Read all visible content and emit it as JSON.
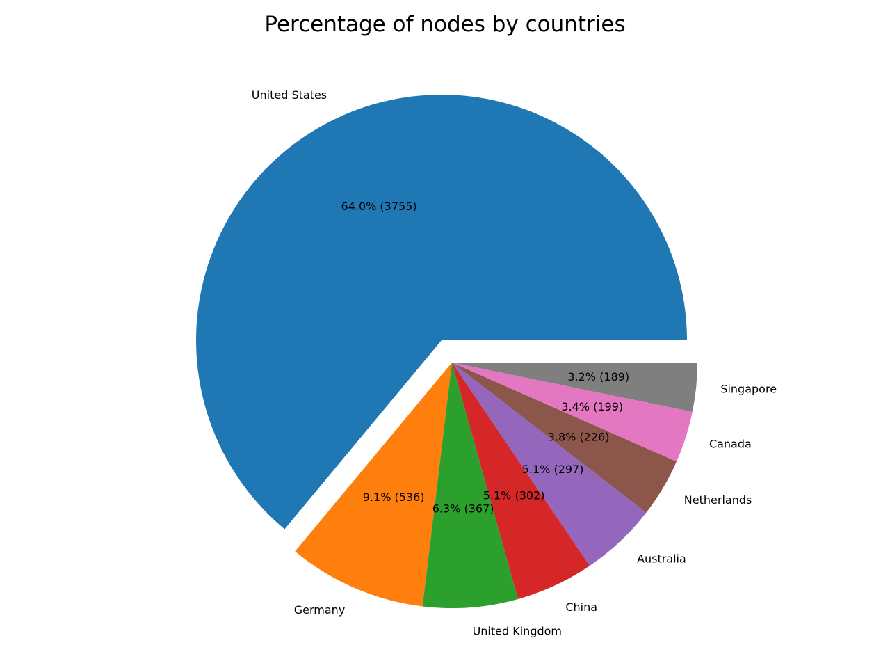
{
  "chart_data": {
    "type": "pie",
    "title": "Percentage of nodes by countries",
    "slices": [
      {
        "label": "United States",
        "value": 3755,
        "percent_label": "64.0% (3755)",
        "color": "#1f77b4",
        "exploded": true
      },
      {
        "label": "Germany",
        "value": 536,
        "percent_label": "9.1% (536)",
        "color": "#ff7f0e",
        "exploded": false
      },
      {
        "label": "United Kingdom",
        "value": 367,
        "percent_label": "6.3% (367)",
        "color": "#2ca02c",
        "exploded": false
      },
      {
        "label": "China",
        "value": 302,
        "percent_label": "5.1% (302)",
        "color": "#d62728",
        "exploded": false
      },
      {
        "label": "Australia",
        "value": 297,
        "percent_label": "5.1% (297)",
        "color": "#9467bd",
        "exploded": false
      },
      {
        "label": "Netherlands",
        "value": 226,
        "percent_label": "3.8% (226)",
        "color": "#8c564b",
        "exploded": false
      },
      {
        "label": "Canada",
        "value": 199,
        "percent_label": "3.4% (199)",
        "color": "#e377c2",
        "exploded": false
      },
      {
        "label": "Singapore",
        "value": 189,
        "percent_label": "3.2% (189)",
        "color": "#7f7f7f",
        "exploded": false
      }
    ]
  }
}
